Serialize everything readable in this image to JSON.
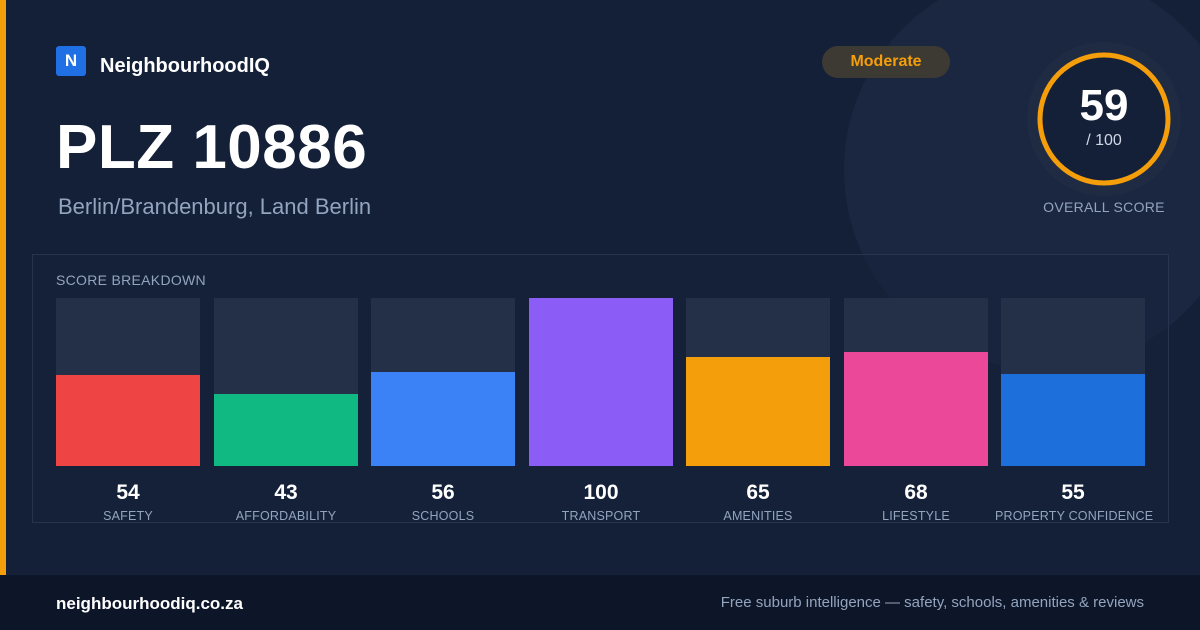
{
  "brand": {
    "logo_letter": "N",
    "name": "NeighbourhoodIQ"
  },
  "header": {
    "title": "PLZ 10886",
    "subtitle": "Berlin/Brandenburg, Land Berlin",
    "badge": "Moderate"
  },
  "overall": {
    "score": "59",
    "max_label": "/ 100",
    "score_fraction": 0.59,
    "caption": "OVERALL SCORE"
  },
  "breakdown": {
    "title": "SCORE BREAKDOWN",
    "items": [
      {
        "value": "54",
        "label": "SAFETY",
        "score": 54,
        "color": "#ef4444"
      },
      {
        "value": "43",
        "label": "AFFORDABILITY",
        "score": 43,
        "color": "#10b981"
      },
      {
        "value": "56",
        "label": "SCHOOLS",
        "score": 56,
        "color": "#3b82f6"
      },
      {
        "value": "100",
        "label": "TRANSPORT",
        "score": 100,
        "color": "#8b5cf6"
      },
      {
        "value": "65",
        "label": "AMENITIES",
        "score": 65,
        "color": "#f59e0b"
      },
      {
        "value": "68",
        "label": "LIFESTYLE",
        "score": 68,
        "color": "#ec4899"
      },
      {
        "value": "55",
        "label": "PROPERTY CONFIDENCE",
        "score": 55,
        "color": "#1d6fdc"
      }
    ]
  },
  "footer": {
    "domain": "neighbourhoodiq.co.za",
    "tagline": "Free suburb intelligence — safety, schools, amenities & reviews"
  },
  "colors": {
    "accent": "#f59e0b",
    "background": "#142038",
    "brand_blue": "#1f6fe5"
  }
}
